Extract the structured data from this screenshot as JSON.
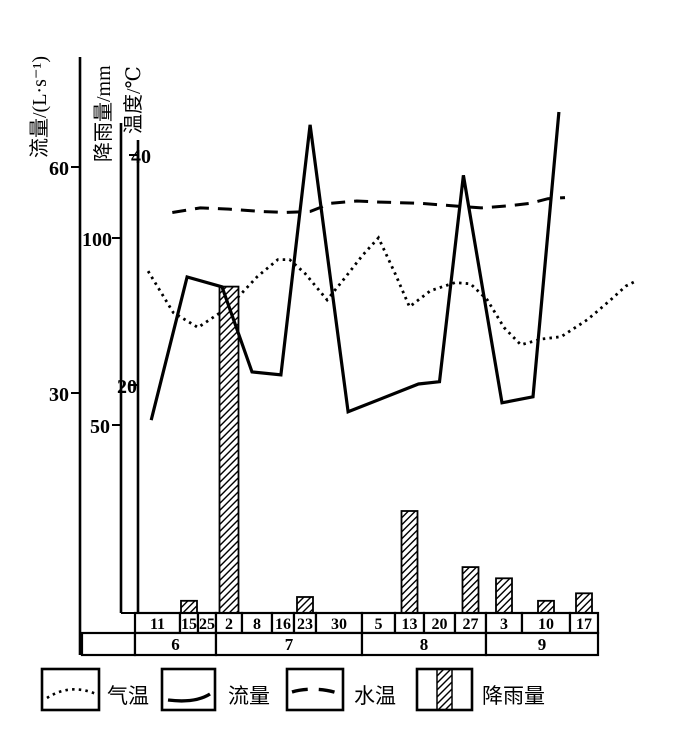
{
  "colors": {
    "ink": "#000000",
    "background": "#ffffff"
  },
  "axes": {
    "flow": {
      "title": "流量/(L·s⁻¹)",
      "unit": "L·s⁻¹",
      "tick_labels": [
        "60",
        "30"
      ],
      "tick_values": [
        60,
        30
      ]
    },
    "rain": {
      "title": "降雨量/mm",
      "unit": "mm",
      "tick_labels": [
        "100",
        "50"
      ],
      "tick_values": [
        100,
        50
      ]
    },
    "temp": {
      "title": "温度/℃",
      "unit": "℃",
      "tick_labels": [
        "40",
        "20"
      ],
      "tick_values": [
        40,
        20
      ]
    }
  },
  "x_axis": {
    "dates": [
      "11",
      "15",
      "25",
      "2",
      "8",
      "16",
      "23",
      "30",
      "5",
      "13",
      "20",
      "27",
      "3",
      "10",
      "17"
    ],
    "months": [
      {
        "label": "6",
        "span": [
          0,
          2
        ]
      },
      {
        "label": "7",
        "span": [
          3,
          7
        ]
      },
      {
        "label": "8",
        "span": [
          8,
          11
        ]
      },
      {
        "label": "9",
        "span": [
          12,
          14
        ]
      }
    ]
  },
  "legend": [
    {
      "label": "气温",
      "style": "dotted-line"
    },
    {
      "label": "流量",
      "style": "solid-line"
    },
    {
      "label": "水温",
      "style": "dashed-line"
    },
    {
      "label": "降雨量",
      "style": "hatched-bar"
    }
  ],
  "chart_data": {
    "type": "line+bar",
    "title": "",
    "x_categories": [
      "6月11日",
      "6月15日",
      "6月25日",
      "7月2日",
      "7月8日",
      "7月16日",
      "7月23日",
      "7月30日",
      "8月5日",
      "8月13日",
      "8月20日",
      "8月27日",
      "9月3日",
      "9月10日",
      "9月17日"
    ],
    "x_note": "x of line points = date-axis index, 0 = 6/11 ... 14 = 9/17, fractional = between dated ticks (hand-drawn trace)",
    "grid": false,
    "legend_position": "bottom",
    "axis_ticks": {
      "流量 L·s⁻¹": [
        60,
        30
      ],
      "降雨量 mm": [
        100,
        50
      ],
      "温度 ℃": [
        40,
        20
      ]
    },
    "series": [
      {
        "name": "气温",
        "type": "line",
        "line_style": "dotted",
        "unit": "℃",
        "points": [
          [
            -0.3,
            29.9
          ],
          [
            0.5,
            26.3
          ],
          [
            1.5,
            25.0
          ],
          [
            3.0,
            26.8
          ],
          [
            4.0,
            29.4
          ],
          [
            4.8,
            30.9
          ],
          [
            5.3,
            30.9
          ],
          [
            6.0,
            29.7
          ],
          [
            6.65,
            27.4
          ],
          [
            7.1,
            29.1
          ],
          [
            7.6,
            31.3
          ],
          [
            8.0,
            32.8
          ],
          [
            8.55,
            29.6
          ],
          [
            9.0,
            26.8
          ],
          [
            9.7,
            28.2
          ],
          [
            10.5,
            28.9
          ],
          [
            11.0,
            28.8
          ],
          [
            11.5,
            27.4
          ],
          [
            12.0,
            25.0
          ],
          [
            12.4,
            23.5
          ],
          [
            12.9,
            24.0
          ],
          [
            13.4,
            24.2
          ],
          [
            14.1,
            25.7
          ],
          [
            14.7,
            27.4
          ],
          [
            15.1,
            28.6
          ],
          [
            15.4,
            29.1
          ]
        ]
      },
      {
        "name": "流量",
        "type": "line",
        "line_style": "solid",
        "unit": "L·s⁻¹",
        "points": [
          [
            -0.2,
            26.4
          ],
          [
            0.94,
            45.4
          ],
          [
            2.68,
            44.1
          ],
          [
            3.82,
            32.8
          ],
          [
            4.92,
            32.4
          ],
          [
            6.15,
            65.6
          ],
          [
            7.23,
            27.5
          ],
          [
            9.3,
            31.2
          ],
          [
            10.0,
            31.5
          ],
          [
            10.77,
            58.9
          ],
          [
            11.94,
            28.7
          ],
          [
            12.69,
            29.5
          ],
          [
            13.34,
            67.3
          ]
        ]
      },
      {
        "name": "水温",
        "type": "line",
        "line_style": "dashed",
        "unit": "℃",
        "points": [
          [
            0.47,
            35.0
          ],
          [
            1.63,
            35.4
          ],
          [
            3.0,
            35.3
          ],
          [
            4.1,
            35.1
          ],
          [
            5.1,
            35.0
          ],
          [
            6.16,
            35.1
          ],
          [
            6.76,
            35.8
          ],
          [
            7.45,
            36.0
          ],
          [
            8.05,
            35.9
          ],
          [
            9.37,
            35.8
          ],
          [
            10.35,
            35.6
          ],
          [
            11.32,
            35.4
          ],
          [
            12.17,
            35.6
          ],
          [
            12.62,
            35.8
          ],
          [
            13.05,
            36.2
          ],
          [
            13.5,
            36.3
          ]
        ]
      },
      {
        "name": "降雨量",
        "type": "bar",
        "bar_style": "hatched",
        "unit": "mm",
        "values_by_date": [
          0,
          3,
          0,
          87,
          0,
          0,
          4,
          0,
          0,
          27,
          0,
          12,
          9,
          3,
          5
        ]
      }
    ]
  }
}
